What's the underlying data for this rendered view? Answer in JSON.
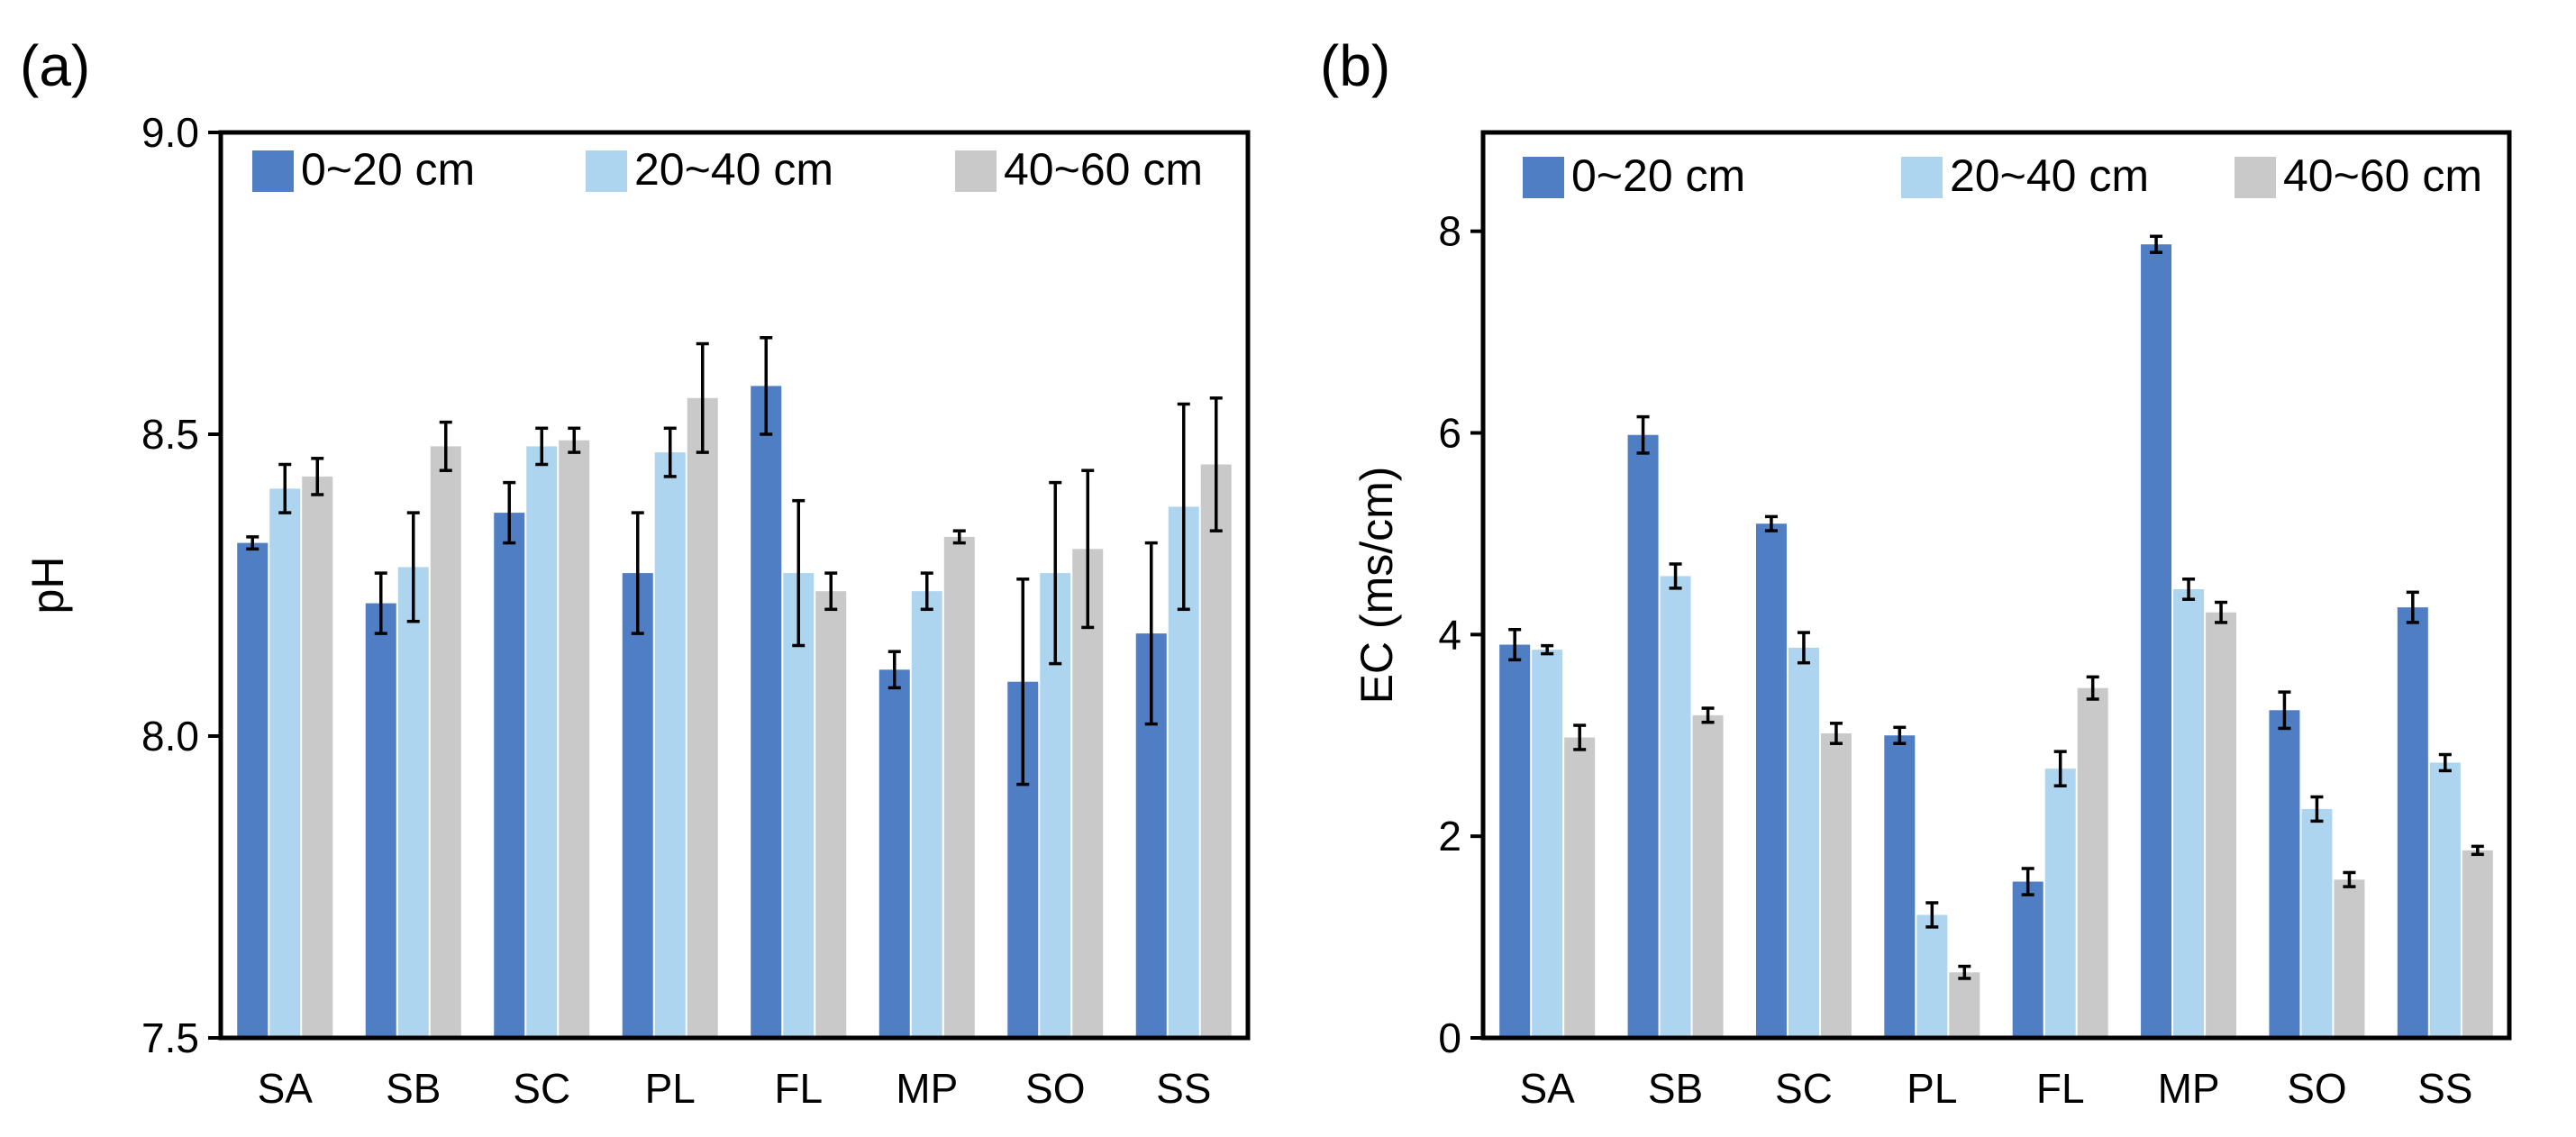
{
  "colors": {
    "s0_20": "#4f7ec4",
    "s20_40": "#aed5ef",
    "s40_60": "#c9c9c9",
    "axis": "#000000",
    "error": "#000000"
  },
  "chart_data": [
    {
      "type": "bar",
      "panel_label": "(a)",
      "title": "",
      "xlabel": "",
      "ylabel": "pH",
      "ylim": [
        7.5,
        9.0
      ],
      "yticks": [
        "7.5",
        "8.0",
        "8.5",
        "9.0"
      ],
      "categories": [
        "SA",
        "SB",
        "SC",
        "PL",
        "FL",
        "MP",
        "SO",
        "SS"
      ],
      "legend_position": "top",
      "series": [
        {
          "name": "0~20 cm",
          "color_key": "s0_20",
          "values": [
            8.32,
            8.22,
            8.37,
            8.27,
            8.58,
            8.11,
            8.09,
            8.17
          ],
          "errors": [
            0.01,
            0.05,
            0.05,
            0.1,
            0.08,
            0.03,
            0.17,
            0.15
          ]
        },
        {
          "name": "20~40 cm",
          "color_key": "s20_40",
          "values": [
            8.41,
            8.28,
            8.48,
            8.47,
            8.27,
            8.24,
            8.27,
            8.38
          ],
          "errors": [
            0.04,
            0.09,
            0.03,
            0.04,
            0.12,
            0.03,
            0.15,
            0.17
          ]
        },
        {
          "name": "40~60 cm",
          "color_key": "s40_60",
          "values": [
            8.43,
            8.48,
            8.49,
            8.56,
            8.24,
            8.33,
            8.31,
            8.45
          ],
          "errors": [
            0.03,
            0.04,
            0.02,
            0.09,
            0.03,
            0.01,
            0.13,
            0.11
          ]
        }
      ]
    },
    {
      "type": "bar",
      "panel_label": "(b)",
      "title": "",
      "xlabel": "",
      "ylabel": "EC (ms/cm)",
      "ylim": [
        0,
        8.98
      ],
      "yticks": [
        "0",
        "2",
        "4",
        "6",
        "8"
      ],
      "categories": [
        "SA",
        "SB",
        "SC",
        "PL",
        "FL",
        "MP",
        "SO",
        "SS"
      ],
      "legend_position": "top",
      "series": [
        {
          "name": "0~20 cm",
          "color_key": "s0_20",
          "values": [
            3.9,
            5.98,
            5.1,
            3.0,
            1.55,
            7.87,
            3.25,
            4.27
          ],
          "errors": [
            0.15,
            0.18,
            0.07,
            0.08,
            0.13,
            0.08,
            0.18,
            0.15
          ]
        },
        {
          "name": "20~40 cm",
          "color_key": "s20_40",
          "values": [
            3.85,
            4.58,
            3.87,
            1.22,
            2.67,
            4.45,
            2.27,
            2.73
          ],
          "errors": [
            0.04,
            0.12,
            0.15,
            0.12,
            0.17,
            0.1,
            0.12,
            0.08
          ]
        },
        {
          "name": "40~60 cm",
          "color_key": "s40_60",
          "values": [
            2.98,
            3.2,
            3.02,
            0.65,
            3.47,
            4.22,
            1.57,
            1.86
          ],
          "errors": [
            0.12,
            0.07,
            0.1,
            0.06,
            0.11,
            0.1,
            0.07,
            0.04
          ]
        }
      ]
    }
  ]
}
